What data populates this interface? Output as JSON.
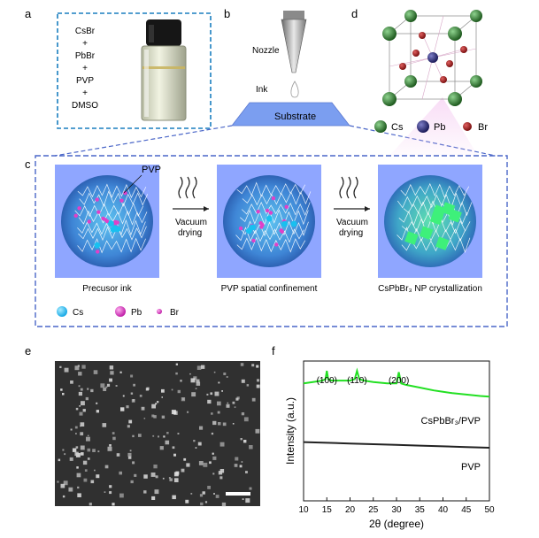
{
  "panels": {
    "a": "a",
    "b": "b",
    "c": "c",
    "d": "d",
    "e": "e",
    "f": "f"
  },
  "panel_a": {
    "lines": [
      "CsBr",
      "+",
      "PbBr",
      "+",
      "PVP",
      "+",
      "DMSO"
    ]
  },
  "panel_b": {
    "nozzle": "Nozzle",
    "ink": "Ink",
    "substrate": "Substrate"
  },
  "panel_d": {
    "legend": [
      {
        "label": "Cs",
        "color": "#1f5b1f"
      },
      {
        "label": "Pb",
        "color": "#1c1c5a"
      },
      {
        "label": "Br",
        "color": "#7a1010"
      }
    ]
  },
  "panel_c": {
    "pvp_label": "PVP",
    "step1": "Vacuum",
    "step2": "drying",
    "captions": [
      "Precusor ink",
      "PVP spatial confinement",
      "CsPbBr₃ NP crystallization"
    ],
    "legend": [
      {
        "label": "Cs",
        "color": "#18a9e6"
      },
      {
        "label": "Pb",
        "color": "#e040c8"
      },
      {
        "label": "Br",
        "color": "#f070d0"
      }
    ]
  },
  "chart_data": {
    "type": "line",
    "xlabel": "2θ (degree)",
    "ylabel": "Intensity (a.u.)",
    "xlim": [
      10,
      50
    ],
    "x_ticks": [
      10,
      15,
      20,
      25,
      30,
      35,
      40,
      45,
      50
    ],
    "peak_labels": [
      {
        "text": "(100)",
        "x": 15
      },
      {
        "text": "(110)",
        "x": 21.5
      },
      {
        "text": "(200)",
        "x": 30.5
      }
    ],
    "series": [
      {
        "name": "CsPbBr₃/PVP",
        "color": "#22e022",
        "x": [
          10,
          12,
          14,
          14.7,
          15,
          15.3,
          16,
          18,
          20,
          21,
          21.5,
          22,
          23,
          25,
          28,
          30,
          30.5,
          31,
          32,
          35,
          38,
          40,
          42,
          45,
          48,
          50
        ],
        "y": [
          0.84,
          0.85,
          0.86,
          0.87,
          0.93,
          0.87,
          0.86,
          0.86,
          0.86,
          0.87,
          0.93,
          0.87,
          0.86,
          0.85,
          0.84,
          0.84,
          0.92,
          0.84,
          0.83,
          0.81,
          0.79,
          0.78,
          0.77,
          0.76,
          0.75,
          0.745
        ]
      },
      {
        "name": "PVP",
        "color": "#222222",
        "x": [
          10,
          15,
          20,
          25,
          30,
          35,
          40,
          45,
          50
        ],
        "y": [
          0.42,
          0.415,
          0.41,
          0.405,
          0.4,
          0.395,
          0.39,
          0.385,
          0.38
        ]
      }
    ]
  }
}
